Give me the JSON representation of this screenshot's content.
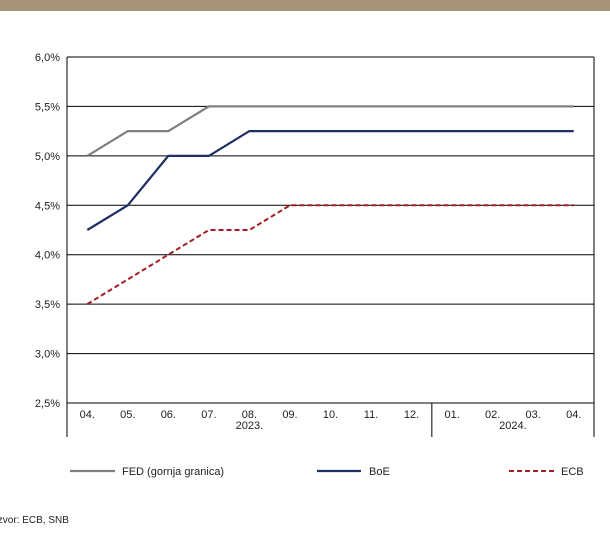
{
  "colors": {
    "top_band": "#a8937a",
    "fed": "#808080",
    "boe": "#1f2f66",
    "ecb": "#a51c24",
    "grid": "#000000"
  },
  "source": "Izvor: ECB, SNB",
  "chart_data": {
    "type": "line",
    "x": [
      "04.",
      "05.",
      "06.",
      "07.",
      "08.",
      "09.",
      "10.",
      "11.",
      "12.",
      "01.",
      "02.",
      "03.",
      "04."
    ],
    "year_groups": [
      {
        "label": "2023.",
        "start": 0,
        "end": 8
      },
      {
        "label": "2024.",
        "start": 9,
        "end": 12
      }
    ],
    "ylim": [
      2.5,
      6.0
    ],
    "yticks": [
      "2,5%",
      "3,0%",
      "3,5%",
      "4,0%",
      "4,5%",
      "5,0%",
      "5,5%",
      "6,0%"
    ],
    "ytick_values": [
      2.5,
      3.0,
      3.5,
      4.0,
      4.5,
      5.0,
      5.5,
      6.0
    ],
    "grid": "horizontal",
    "legend_position": "bottom",
    "series": [
      {
        "name": "FED (gornja granica)",
        "style": "solid",
        "color": "#808080",
        "values": [
          5.0,
          5.25,
          5.25,
          5.5,
          5.5,
          5.5,
          5.5,
          5.5,
          5.5,
          5.5,
          5.5,
          5.5,
          5.5
        ]
      },
      {
        "name": "BoE",
        "style": "solid",
        "color": "#1f2f66",
        "values": [
          4.25,
          4.5,
          5.0,
          5.0,
          5.25,
          5.25,
          5.25,
          5.25,
          5.25,
          5.25,
          5.25,
          5.25,
          5.25
        ]
      },
      {
        "name": "ECB",
        "style": "dashed",
        "color": "#a51c24",
        "values": [
          3.5,
          3.75,
          4.0,
          4.25,
          4.25,
          4.5,
          4.5,
          4.5,
          4.5,
          4.5,
          4.5,
          4.5,
          4.5
        ]
      }
    ]
  }
}
